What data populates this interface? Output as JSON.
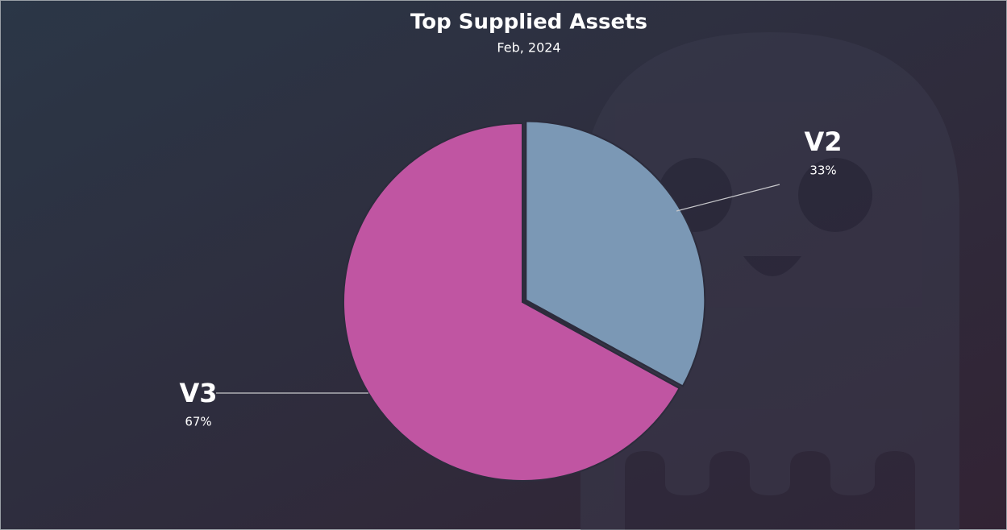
{
  "chart_data": {
    "type": "pie",
    "title": "Top Supplied Assets",
    "subtitle": "Feb, 2024",
    "categories": [
      "V2",
      "V3"
    ],
    "values": [
      33,
      67
    ],
    "value_labels": [
      "33%",
      "67%"
    ],
    "colors": [
      "#7b98b5",
      "#c055a2"
    ]
  }
}
